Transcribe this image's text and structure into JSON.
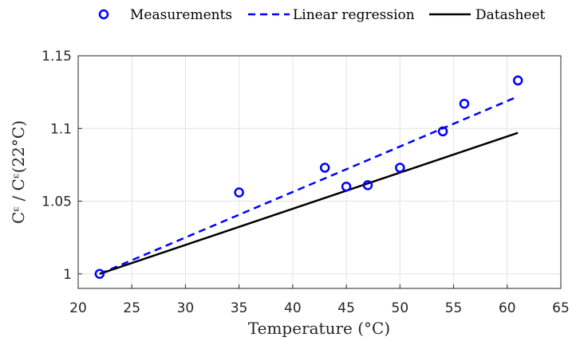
{
  "chart_data": {
    "type": "scatter",
    "xlabel": "Temperature (°C)",
    "ylabel": "Cᵋ / Cᵋ(22°C)",
    "xlim": [
      20,
      65
    ],
    "ylim": [
      0.99,
      1.15
    ],
    "x_ticks": [
      20,
      25,
      30,
      35,
      40,
      45,
      50,
      55,
      60,
      65
    ],
    "y_ticks": [
      1,
      1.05,
      1.1,
      1.15
    ],
    "y_tick_labels": [
      "1",
      "1.05",
      "1.1",
      "1.15"
    ],
    "grid": true,
    "legend_position": "top (outside, horizontal)",
    "series": [
      {
        "name": "Measurements",
        "style": "markers (open circles)",
        "color": "#0000ff",
        "x": [
          22,
          35,
          43,
          45,
          47,
          50,
          54,
          56,
          61
        ],
        "y": [
          1.0,
          1.056,
          1.073,
          1.06,
          1.061,
          1.073,
          1.098,
          1.117,
          1.133
        ]
      },
      {
        "name": "Linear regression",
        "style": "dashed line",
        "color": "#0000ff",
        "x": [
          22,
          61
        ],
        "y": [
          1.0,
          1.122
        ]
      },
      {
        "name": "Datasheet",
        "style": "solid line",
        "color": "#000000",
        "x": [
          22,
          61
        ],
        "y": [
          1.0,
          1.097
        ]
      }
    ]
  }
}
